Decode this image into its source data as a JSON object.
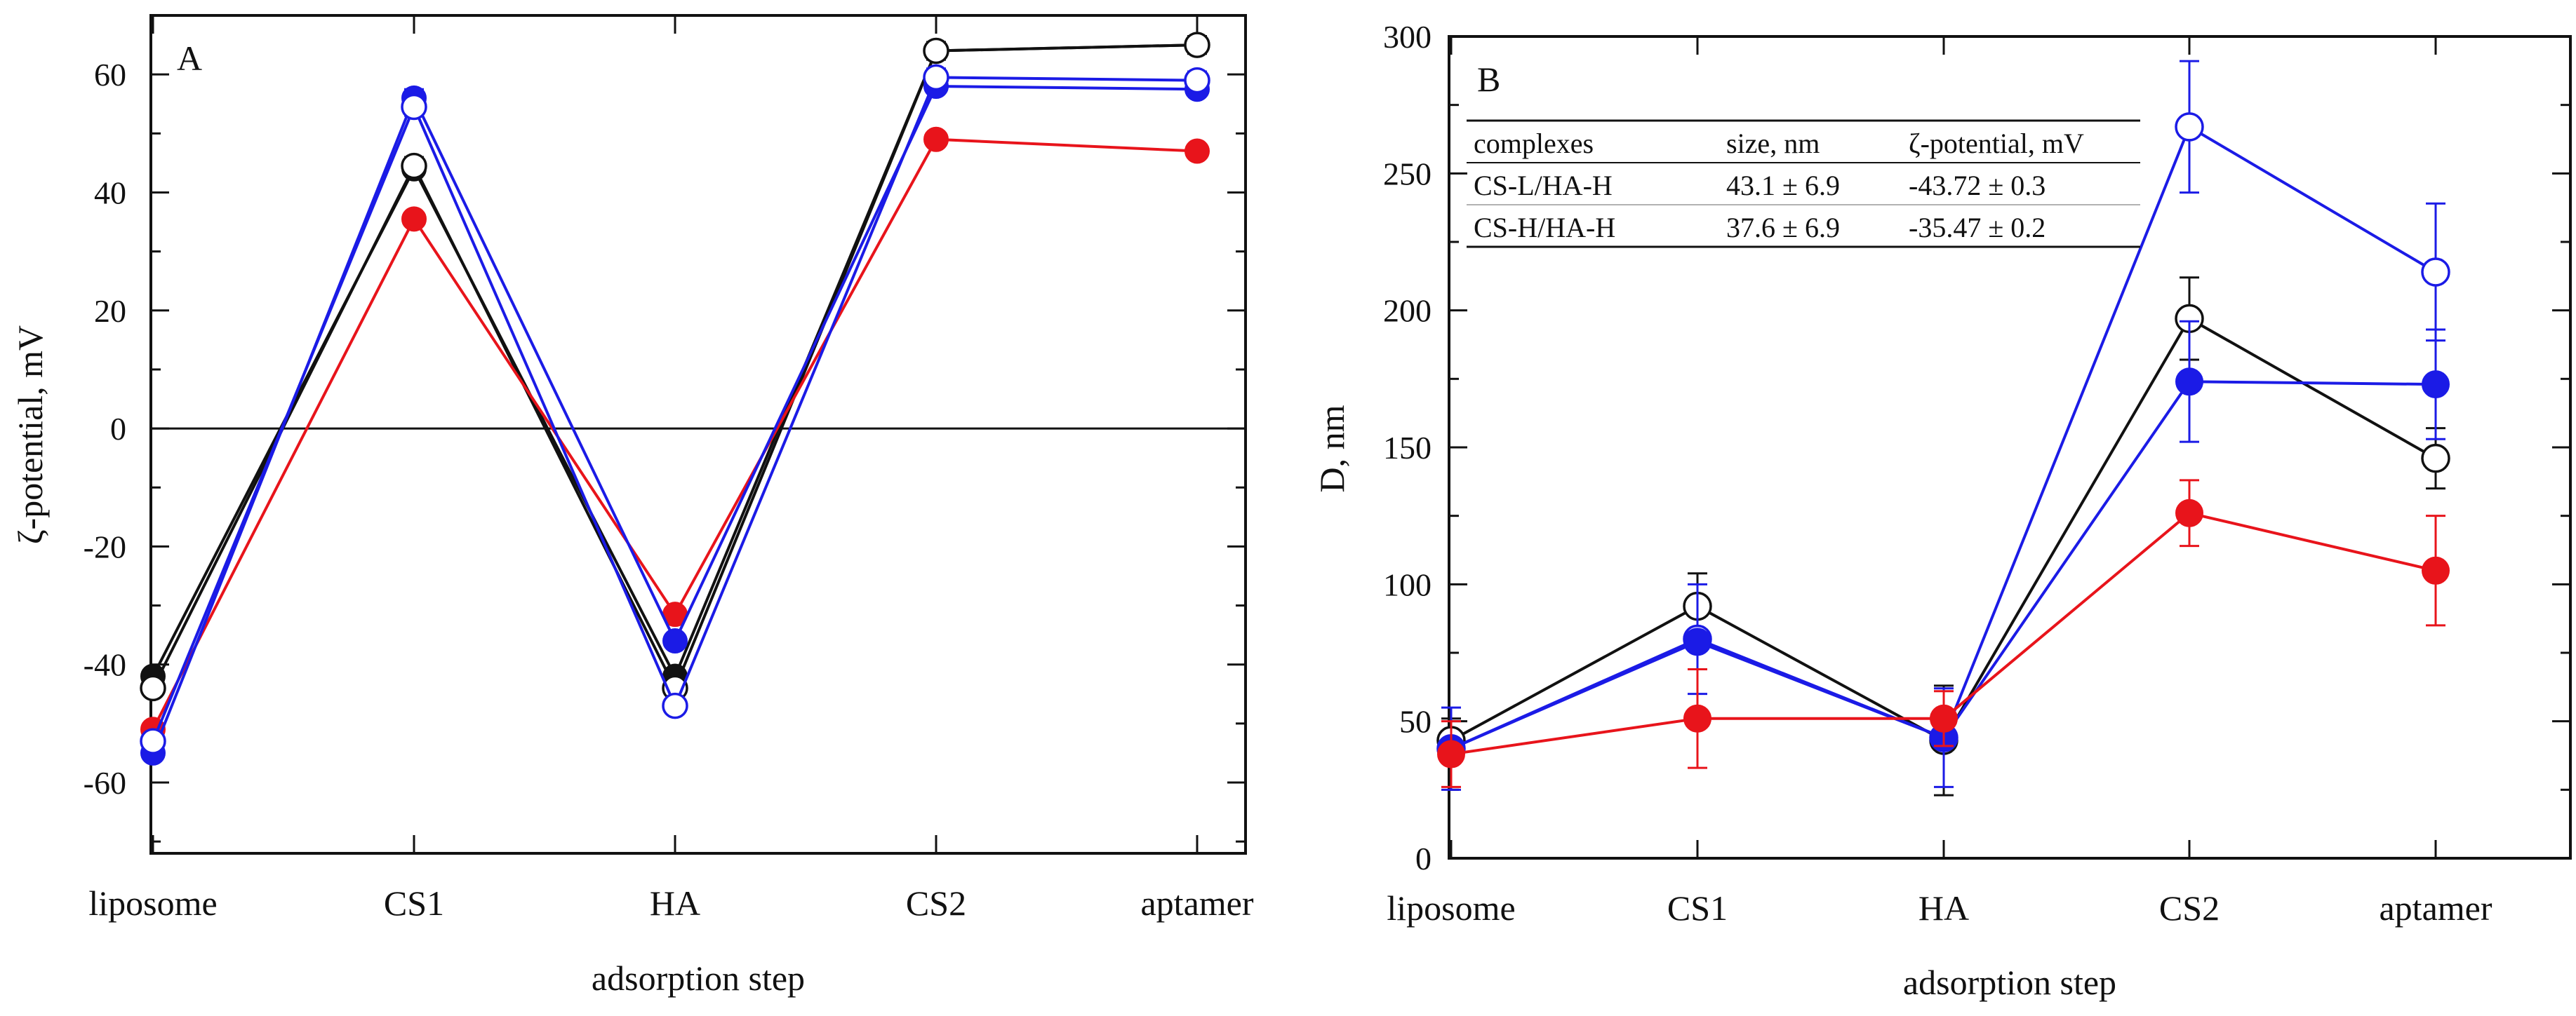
{
  "colors": {
    "black": "#111111",
    "red": "#e8141b",
    "blue": "#1b1be6"
  },
  "chart_data": [
    {
      "type": "line",
      "panel_letter": "A",
      "xlabel": "adsorption step",
      "ylabel": "ζ-potential, mV",
      "categories": [
        "liposome",
        "CS1",
        "HA",
        "CS2",
        "aptamer"
      ],
      "ylim": [
        -72,
        70
      ],
      "yticks": [
        -60,
        -40,
        -20,
        0,
        20,
        40,
        60
      ],
      "ytick_labels": [
        "-60",
        "-40",
        "-20",
        "0",
        "20",
        "40",
        "60"
      ],
      "zero_line": true,
      "series": [
        {
          "name": "black-filled",
          "color": "#111111",
          "marker": "filled",
          "values": [
            -42,
            44,
            -42,
            64,
            65
          ],
          "errors": [
            0,
            0,
            0,
            0,
            0
          ]
        },
        {
          "name": "black-open",
          "color": "#111111",
          "marker": "open",
          "values": [
            -44,
            44.5,
            -44,
            64,
            65
          ],
          "errors": [
            1,
            1.5,
            1,
            1.5,
            1.5
          ]
        },
        {
          "name": "red-filled",
          "color": "#e8141b",
          "marker": "filled",
          "values": [
            -51,
            35.5,
            -31.5,
            49,
            47
          ],
          "errors": [
            0,
            0,
            0,
            0,
            0
          ]
        },
        {
          "name": "blue-filled",
          "color": "#1b1be6",
          "marker": "filled",
          "values": [
            -55,
            56,
            -36,
            58,
            57.5
          ],
          "errors": [
            0.5,
            1.5,
            0.5,
            0.5,
            0.5
          ]
        },
        {
          "name": "blue-open",
          "color": "#1b1be6",
          "marker": "open",
          "values": [
            -53,
            54.5,
            -47,
            59.5,
            59
          ],
          "errors": [
            0,
            1.5,
            0,
            1.5,
            1.5
          ]
        }
      ]
    },
    {
      "type": "line",
      "panel_letter": "B",
      "xlabel": "adsorption step",
      "ylabel": "D, nm",
      "categories": [
        "liposome",
        "CS1",
        "HA",
        "CS2",
        "aptamer"
      ],
      "ylim": [
        0,
        300
      ],
      "yticks": [
        0,
        50,
        100,
        150,
        200,
        250,
        300
      ],
      "ytick_labels": [
        "0",
        "50",
        "100",
        "150",
        "200",
        "250",
        "300"
      ],
      "series": [
        {
          "name": "black-open",
          "color": "#111111",
          "marker": "open",
          "values": [
            43,
            92,
            43,
            197,
            146
          ],
          "errors": [
            8,
            12,
            20,
            15,
            11
          ]
        },
        {
          "name": "blue-open",
          "color": "#1b1be6",
          "marker": "open",
          "values": [
            40,
            80,
            44,
            267,
            214
          ],
          "errors": [
            15,
            20,
            18,
            24,
            25
          ]
        },
        {
          "name": "blue-filled",
          "color": "#1b1be6",
          "marker": "filled",
          "values": [
            40,
            79,
            44,
            174,
            173
          ],
          "errors": [
            0,
            0,
            0,
            22,
            20
          ]
        },
        {
          "name": "red-filled",
          "color": "#e8141b",
          "marker": "filled",
          "values": [
            38,
            51,
            51,
            126,
            105
          ],
          "errors": [
            12,
            18,
            10,
            12,
            20
          ]
        }
      ],
      "inset_table": {
        "headers": [
          "complexes",
          "size, nm",
          "ζ-potential, mV"
        ],
        "rows": [
          [
            "CS-L/HA-H",
            "43.1 ± 6.9",
            "-43.72 ± 0.3"
          ],
          [
            "CS-H/HA-H",
            "37.6 ± 6.9",
            "-35.47 ± 0.2"
          ]
        ]
      }
    }
  ]
}
